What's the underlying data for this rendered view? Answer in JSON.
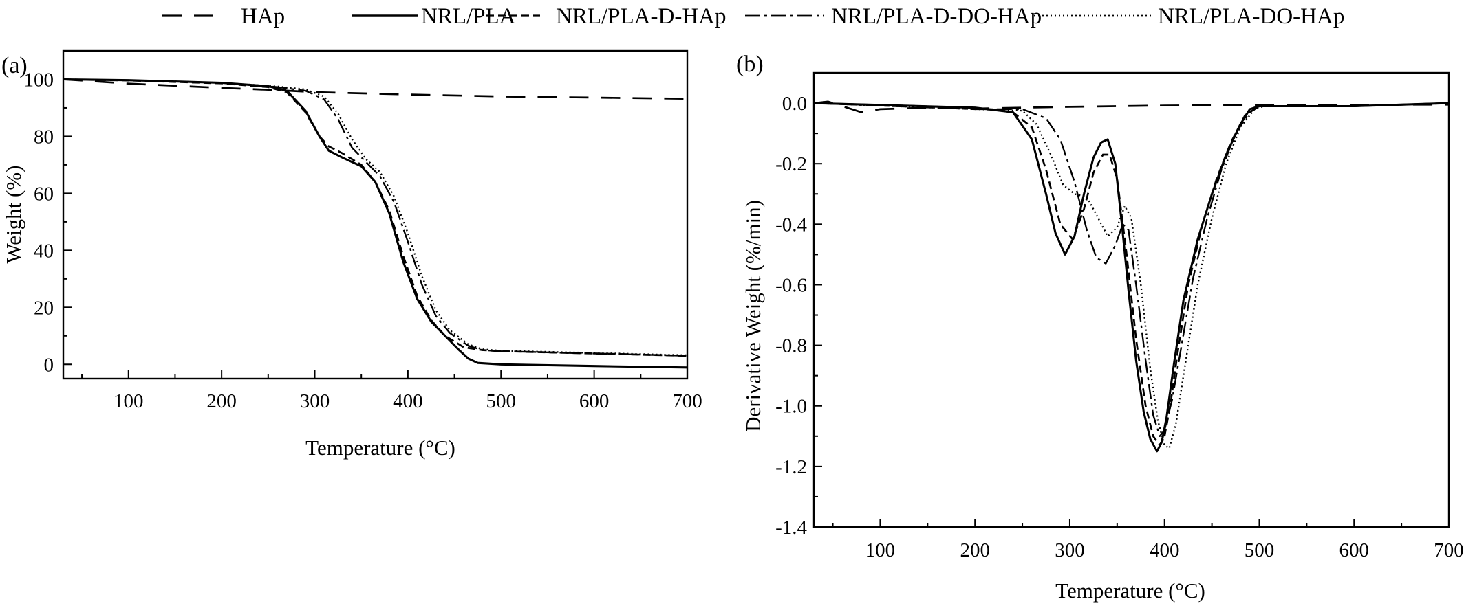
{
  "legend": {
    "items": [
      {
        "label": "HAp",
        "dash": "28,18",
        "width": 3.2
      },
      {
        "label": "NRL/PLA",
        "dash": "",
        "width": 3.6
      },
      {
        "label": "NRL/PLA-D-HAp",
        "dash": "11,6",
        "width": 3.2
      },
      {
        "label": "NRL/PLA-D-DO-HAp",
        "dash": "22,6,4,6",
        "width": 2.8
      },
      {
        "label": "NRL/PLA-DO-HAp",
        "dash": "2,4",
        "width": 2.8
      }
    ]
  },
  "chart_data": [
    {
      "type": "line",
      "panel_label": "(a)",
      "xlabel": "Temperature (°C)",
      "ylabel": "Weight (%)",
      "xlim": [
        30,
        700
      ],
      "ylim": [
        -5,
        110
      ],
      "xticks": [
        100,
        200,
        300,
        400,
        500,
        600,
        700
      ],
      "yticks": [
        0,
        20,
        40,
        60,
        80,
        100
      ],
      "ytick_labels": [
        "0",
        "20",
        "40",
        "60",
        "80",
        "100"
      ],
      "grid": false,
      "series": [
        {
          "name": "HAp",
          "x": [
            30,
            100,
            200,
            260,
            300,
            400,
            500,
            600,
            700
          ],
          "y": [
            100,
            98.5,
            97,
            96.2,
            95.5,
            94.7,
            94.0,
            93.6,
            93.2
          ]
        },
        {
          "name": "NRL/PLA",
          "x": [
            30,
            100,
            200,
            250,
            270,
            290,
            305,
            315,
            330,
            350,
            365,
            380,
            395,
            410,
            425,
            440,
            455,
            465,
            475,
            500,
            600,
            700
          ],
          "y": [
            100,
            99.7,
            98.8,
            97.6,
            96,
            89,
            80,
            75,
            72.5,
            69.5,
            64,
            53,
            36,
            23,
            15,
            10,
            5,
            2,
            0.5,
            0,
            -0.6,
            -1.1
          ]
        },
        {
          "name": "NRL/PLA-D-HAp",
          "x": [
            30,
            100,
            200,
            250,
            270,
            290,
            305,
            315,
            330,
            350,
            365,
            380,
            395,
            410,
            425,
            440,
            460,
            480,
            500,
            600,
            700
          ],
          "y": [
            100,
            99.6,
            98.6,
            97.3,
            95.5,
            88.5,
            80,
            76.5,
            74,
            70,
            64,
            54,
            38,
            24,
            15.5,
            10,
            6,
            5,
            4.6,
            3.8,
            3.0
          ]
        },
        {
          "name": "NRL/PLA-D-DO-HAp",
          "x": [
            30,
            100,
            200,
            260,
            290,
            310,
            325,
            340,
            355,
            370,
            385,
            400,
            415,
            430,
            445,
            465,
            480,
            500,
            600,
            700
          ],
          "y": [
            100,
            99.7,
            98.8,
            97.3,
            96,
            93,
            86,
            76,
            71,
            66,
            57,
            43,
            28,
            17,
            11,
            6.5,
            5,
            4.6,
            3.8,
            3.0
          ]
        },
        {
          "name": "NRL/PLA-DO-HAp",
          "x": [
            30,
            100,
            200,
            260,
            290,
            310,
            325,
            340,
            355,
            370,
            385,
            400,
            415,
            430,
            445,
            465,
            480,
            500,
            600,
            700
          ],
          "y": [
            100,
            99.7,
            98.8,
            97.5,
            96.5,
            94,
            88,
            79,
            72,
            67.5,
            59,
            46,
            31,
            19,
            12,
            7,
            5.3,
            4.8,
            4.0,
            3.2
          ]
        }
      ]
    },
    {
      "type": "line",
      "panel_label": "(b)",
      "xlabel": "Temperature (°C)",
      "ylabel": "Derivative Weight (%/min)",
      "xlim": [
        30,
        700
      ],
      "ylim": [
        -1.4,
        0.1
      ],
      "xticks": [
        100,
        200,
        300,
        400,
        500,
        600,
        700
      ],
      "yticks": [
        0.0,
        -0.2,
        -0.4,
        -0.6,
        -0.8,
        -1.0,
        -1.2,
        -1.4
      ],
      "ytick_labels": [
        "0.0",
        "-0.2",
        "-0.4",
        "-0.6",
        "-0.8",
        "-1.0",
        "-1.2",
        "-1.4"
      ],
      "grid": false,
      "series": [
        {
          "name": "HAp",
          "x": [
            30,
            45,
            60,
            80,
            100,
            150,
            200,
            300,
            400,
            500,
            600,
            700
          ],
          "y": [
            0,
            0.005,
            -0.01,
            -0.03,
            -0.02,
            -0.015,
            -0.018,
            -0.012,
            -0.008,
            -0.006,
            -0.005,
            -0.005
          ]
        },
        {
          "name": "NRL/PLA",
          "x": [
            30,
            200,
            240,
            260,
            275,
            285,
            295,
            305,
            315,
            325,
            333,
            340,
            348,
            355,
            362,
            370,
            378,
            385,
            392,
            397,
            402,
            410,
            420,
            435,
            450,
            465,
            480,
            490,
            500,
            600,
            700
          ],
          "y": [
            0,
            -0.015,
            -0.03,
            -0.12,
            -0.3,
            -0.43,
            -0.5,
            -0.44,
            -0.3,
            -0.18,
            -0.13,
            -0.12,
            -0.2,
            -0.4,
            -0.62,
            -0.85,
            -1.02,
            -1.11,
            -1.15,
            -1.12,
            -1.04,
            -0.86,
            -0.65,
            -0.45,
            -0.3,
            -0.17,
            -0.07,
            -0.02,
            -0.01,
            -0.01,
            0
          ]
        },
        {
          "name": "NRL/PLA-D-HAp",
          "x": [
            30,
            200,
            240,
            260,
            275,
            290,
            303,
            315,
            325,
            335,
            342,
            350,
            360,
            370,
            380,
            388,
            395,
            400,
            406,
            414,
            425,
            440,
            455,
            470,
            485,
            500,
            600,
            700
          ],
          "y": [
            0,
            -0.015,
            -0.03,
            -0.08,
            -0.22,
            -0.4,
            -0.45,
            -0.35,
            -0.23,
            -0.17,
            -0.17,
            -0.25,
            -0.5,
            -0.78,
            -1.0,
            -1.1,
            -1.13,
            -1.1,
            -1.0,
            -0.82,
            -0.6,
            -0.4,
            -0.25,
            -0.13,
            -0.04,
            -0.01,
            -0.01,
            0
          ]
        },
        {
          "name": "NRL/PLA-D-DO-HAp",
          "x": [
            30,
            200,
            250,
            275,
            290,
            305,
            318,
            328,
            338,
            348,
            356,
            362,
            370,
            380,
            388,
            395,
            400,
            408,
            418,
            430,
            445,
            460,
            475,
            490,
            500,
            600,
            700
          ],
          "y": [
            0,
            -0.02,
            -0.02,
            -0.05,
            -0.12,
            -0.26,
            -0.42,
            -0.51,
            -0.53,
            -0.47,
            -0.4,
            -0.42,
            -0.6,
            -0.85,
            -1.03,
            -1.1,
            -1.08,
            -0.98,
            -0.8,
            -0.58,
            -0.38,
            -0.22,
            -0.1,
            -0.03,
            -0.01,
            -0.01,
            0
          ]
        },
        {
          "name": "NRL/PLA-DO-HAp",
          "x": [
            30,
            200,
            250,
            265,
            280,
            293,
            305,
            318,
            330,
            340,
            350,
            358,
            365,
            375,
            385,
            393,
            400,
            405,
            412,
            422,
            435,
            450,
            465,
            480,
            495,
            505,
            600,
            700
          ],
          "y": [
            0,
            -0.02,
            -0.025,
            -0.07,
            -0.17,
            -0.27,
            -0.3,
            -0.31,
            -0.38,
            -0.44,
            -0.41,
            -0.34,
            -0.38,
            -0.6,
            -0.88,
            -1.05,
            -1.13,
            -1.14,
            -1.06,
            -0.86,
            -0.6,
            -0.38,
            -0.2,
            -0.08,
            -0.02,
            -0.01,
            -0.01,
            0
          ]
        }
      ]
    }
  ]
}
